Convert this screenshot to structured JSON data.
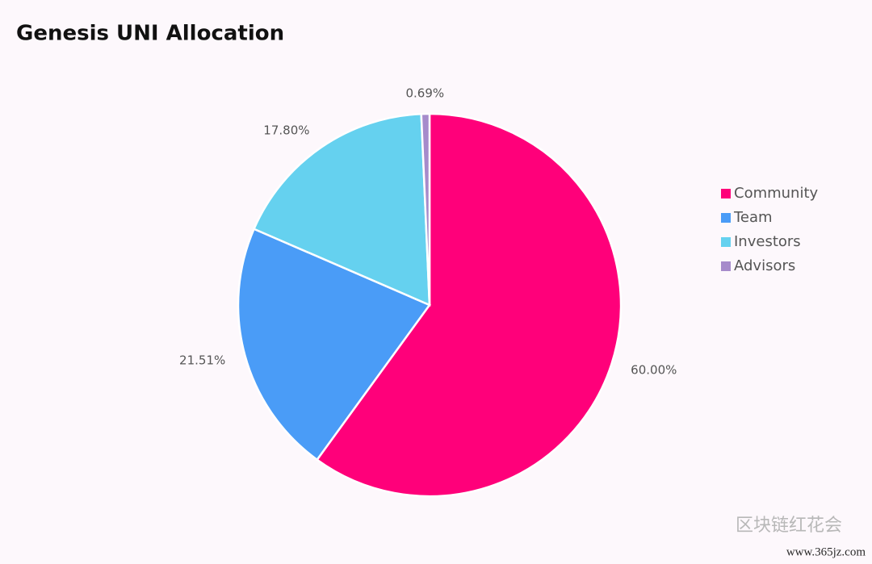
{
  "chart_data": {
    "type": "pie",
    "title": "Genesis UNI Allocation",
    "categories": [
      "Community",
      "Team",
      "Investors",
      "Advisors"
    ],
    "values": [
      60,
      21.51,
      17.8,
      0.69
    ],
    "value_labels": [
      "60.00%",
      "21.51%",
      "17.80%",
      "0.69%"
    ],
    "colors": [
      "#ff007a",
      "#4a9cf7",
      "#65d1ef",
      "#a68bcb"
    ],
    "legend": "right"
  },
  "watermark": {
    "name": "区块链红花会",
    "url": "www.365jz.com"
  }
}
